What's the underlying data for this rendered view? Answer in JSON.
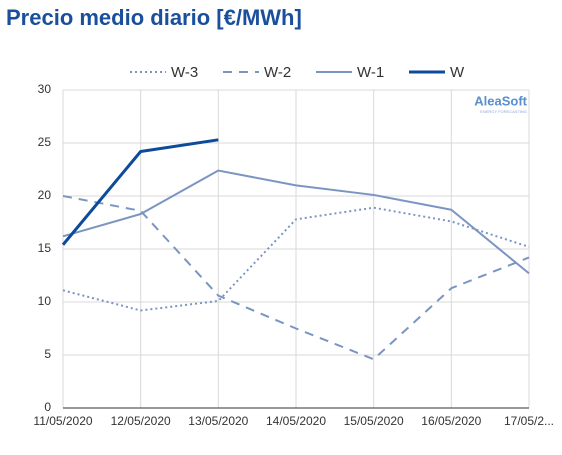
{
  "chart_data": {
    "type": "line",
    "title": "Precio medio diario [€/MWh]",
    "logo": {
      "name": "AleaSoft",
      "tagline": "ENERGY FORECASTING"
    },
    "categories": [
      "11/05/2020",
      "12/05/2020",
      "13/05/2020",
      "14/05/2020",
      "15/05/2020",
      "16/05/2020",
      "17/05/2..."
    ],
    "series": [
      {
        "name": "W-3",
        "color": "#7b95c2",
        "dash": "dotted",
        "width": 2,
        "values": [
          11.1,
          9.2,
          10.1,
          17.8,
          18.9,
          17.6,
          15.2
        ]
      },
      {
        "name": "W-2",
        "color": "#7b95c2",
        "dash": "dashed",
        "width": 2,
        "values": [
          20.0,
          18.6,
          10.6,
          7.5,
          4.6,
          11.3,
          14.2
        ]
      },
      {
        "name": "W-1",
        "color": "#7b95c2",
        "dash": "solid",
        "width": 2,
        "values": [
          16.2,
          18.3,
          22.4,
          21.0,
          20.1,
          18.7,
          12.7
        ]
      },
      {
        "name": "W",
        "color": "#0d4a9a",
        "dash": "solid",
        "width": 3,
        "values": [
          15.4,
          24.2,
          25.3,
          null,
          null,
          null,
          null
        ]
      }
    ],
    "ylim": [
      0,
      30
    ],
    "yticks": [
      0,
      5,
      10,
      15,
      20,
      25,
      30
    ],
    "grid": true
  }
}
